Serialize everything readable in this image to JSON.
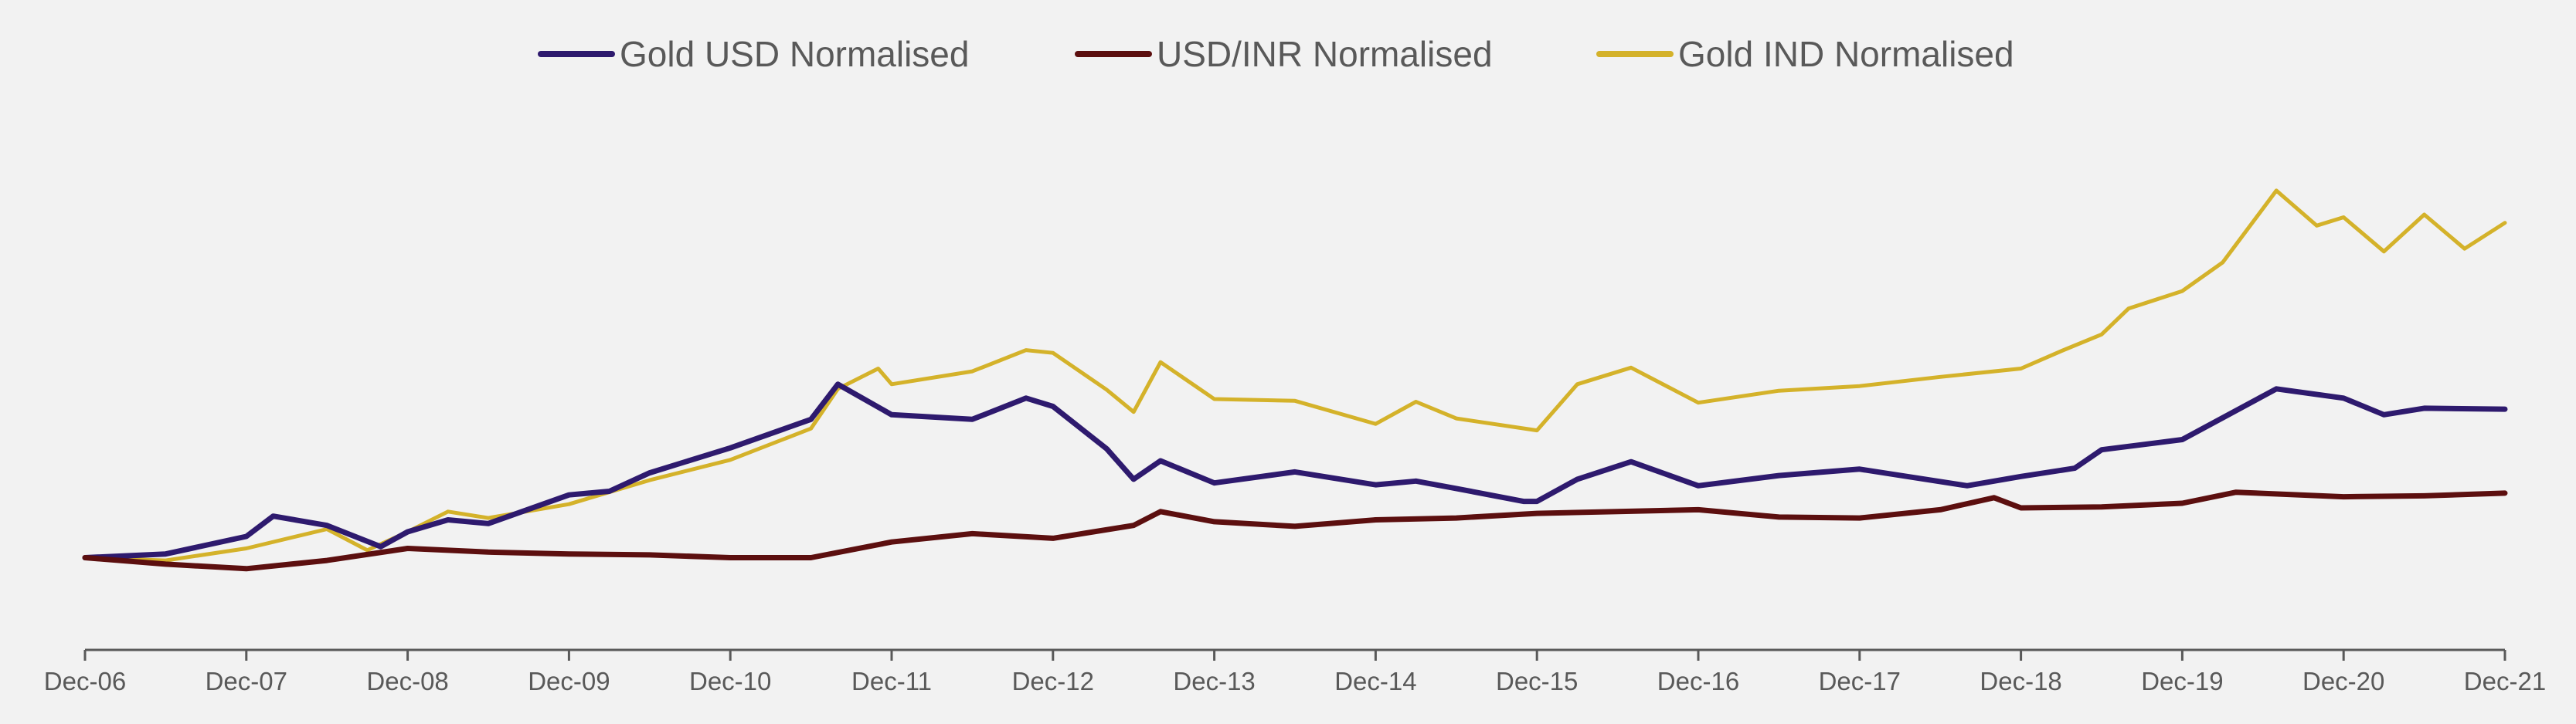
{
  "chart_data": {
    "type": "line",
    "title": "",
    "xlabel": "",
    "ylabel": "",
    "x_start": "Dec-06",
    "x_ticks": [
      "Dec-06",
      "Dec-07",
      "Dec-08",
      "Dec-09",
      "Dec-10",
      "Dec-11",
      "Dec-12",
      "Dec-13",
      "Dec-14",
      "Dec-15",
      "Dec-16",
      "Dec-17",
      "Dec-18",
      "Dec-19",
      "Dec-20",
      "Dec-21"
    ],
    "ylim": [
      0,
      6.2
    ],
    "legend_position": "top-center",
    "grid": false,
    "series": [
      {
        "name": "Gold USD Normalised",
        "color": "#2e1a6e",
        "points": [
          [
            "Dec-06",
            1.0
          ],
          [
            "Jun-07",
            1.04
          ],
          [
            "Dec-07",
            1.23
          ],
          [
            "Feb-08",
            1.45
          ],
          [
            "Jun-08",
            1.35
          ],
          [
            "Oct-08",
            1.12
          ],
          [
            "Dec-08",
            1.28
          ],
          [
            "Mar-09",
            1.41
          ],
          [
            "Jun-09",
            1.37
          ],
          [
            "Dec-09",
            1.68
          ],
          [
            "Mar-10",
            1.72
          ],
          [
            "Jun-10",
            1.92
          ],
          [
            "Dec-10",
            2.19
          ],
          [
            "Jun-11",
            2.5
          ],
          [
            "Aug-11",
            2.88
          ],
          [
            "Dec-11",
            2.55
          ],
          [
            "Jun-12",
            2.5
          ],
          [
            "Oct-12",
            2.73
          ],
          [
            "Dec-12",
            2.64
          ],
          [
            "Apr-13",
            2.18
          ],
          [
            "Jun-13",
            1.85
          ],
          [
            "Aug-13",
            2.05
          ],
          [
            "Dec-13",
            1.81
          ],
          [
            "Jun-14",
            1.93
          ],
          [
            "Dec-14",
            1.79
          ],
          [
            "Mar-15",
            1.83
          ],
          [
            "Jun-15",
            1.75
          ],
          [
            "Nov-15",
            1.61
          ],
          [
            "Dec-15",
            1.61
          ],
          [
            "Mar-16",
            1.85
          ],
          [
            "Jul-16",
            2.04
          ],
          [
            "Dec-16",
            1.78
          ],
          [
            "Jun-17",
            1.89
          ],
          [
            "Dec-17",
            1.96
          ],
          [
            "Aug-18",
            1.78
          ],
          [
            "Dec-18",
            1.88
          ],
          [
            "Apr-19",
            1.97
          ],
          [
            "Jun-19",
            2.17
          ],
          [
            "Dec-19",
            2.28
          ],
          [
            "Jul-20",
            2.83
          ],
          [
            "Dec-20",
            2.73
          ],
          [
            "Mar-21",
            2.55
          ],
          [
            "Jun-21",
            2.62
          ],
          [
            "Dec-21",
            2.61
          ]
        ]
      },
      {
        "name": "USD/INR Normalised",
        "color": "#5c0f0f",
        "points": [
          [
            "Dec-06",
            1.0
          ],
          [
            "Jun-07",
            0.93
          ],
          [
            "Dec-07",
            0.88
          ],
          [
            "Jun-08",
            0.97
          ],
          [
            "Dec-08",
            1.1
          ],
          [
            "Jun-09",
            1.06
          ],
          [
            "Dec-09",
            1.04
          ],
          [
            "Jun-10",
            1.03
          ],
          [
            "Dec-10",
            1.0
          ],
          [
            "Jun-11",
            1.0
          ],
          [
            "Dec-11",
            1.17
          ],
          [
            "Jun-12",
            1.26
          ],
          [
            "Dec-12",
            1.21
          ],
          [
            "Jun-13",
            1.35
          ],
          [
            "Aug-13",
            1.5
          ],
          [
            "Dec-13",
            1.39
          ],
          [
            "Jun-14",
            1.34
          ],
          [
            "Dec-14",
            1.41
          ],
          [
            "Jun-15",
            1.43
          ],
          [
            "Dec-15",
            1.48
          ],
          [
            "Jun-16",
            1.5
          ],
          [
            "Dec-16",
            1.52
          ],
          [
            "Jun-17",
            1.44
          ],
          [
            "Dec-17",
            1.43
          ],
          [
            "Jun-18",
            1.52
          ],
          [
            "Oct-18",
            1.65
          ],
          [
            "Dec-18",
            1.54
          ],
          [
            "Jun-19",
            1.55
          ],
          [
            "Dec-19",
            1.59
          ],
          [
            "Apr-20",
            1.71
          ],
          [
            "Dec-20",
            1.66
          ],
          [
            "Jun-21",
            1.67
          ],
          [
            "Dec-21",
            1.7
          ]
        ]
      },
      {
        "name": "Gold IND Normalised",
        "color": "#d4b22a",
        "points": [
          [
            "Dec-06",
            1.0
          ],
          [
            "Jun-07",
            0.97
          ],
          [
            "Dec-07",
            1.1
          ],
          [
            "Jun-08",
            1.31
          ],
          [
            "Sep-08",
            1.08
          ],
          [
            "Dec-08",
            1.28
          ],
          [
            "Mar-09",
            1.5
          ],
          [
            "Jun-09",
            1.43
          ],
          [
            "Dec-09",
            1.58
          ],
          [
            "Jun-10",
            1.84
          ],
          [
            "Dec-10",
            2.06
          ],
          [
            "Jun-11",
            2.4
          ],
          [
            "Aug-11",
            2.83
          ],
          [
            "Nov-11",
            3.05
          ],
          [
            "Dec-11",
            2.88
          ],
          [
            "Jun-12",
            3.02
          ],
          [
            "Oct-12",
            3.25
          ],
          [
            "Dec-12",
            3.22
          ],
          [
            "Apr-13",
            2.82
          ],
          [
            "Jun-13",
            2.58
          ],
          [
            "Aug-13",
            3.12
          ],
          [
            "Dec-13",
            2.72
          ],
          [
            "Jun-14",
            2.7
          ],
          [
            "Dec-14",
            2.45
          ],
          [
            "Mar-15",
            2.69
          ],
          [
            "Jun-15",
            2.51
          ],
          [
            "Dec-15",
            2.38
          ],
          [
            "Mar-16",
            2.88
          ],
          [
            "Jul-16",
            3.06
          ],
          [
            "Dec-16",
            2.68
          ],
          [
            "Jun-17",
            2.81
          ],
          [
            "Dec-17",
            2.86
          ],
          [
            "Jun-18",
            2.96
          ],
          [
            "Dec-18",
            3.05
          ],
          [
            "Mar-19",
            3.24
          ],
          [
            "Jun-19",
            3.42
          ],
          [
            "Aug-19",
            3.7
          ],
          [
            "Dec-19",
            3.89
          ],
          [
            "Mar-20",
            4.2
          ],
          [
            "Jul-20",
            4.98
          ],
          [
            "Oct-20",
            4.6
          ],
          [
            "Dec-20",
            4.69
          ],
          [
            "Mar-21",
            4.32
          ],
          [
            "Jun-21",
            4.72
          ],
          [
            "Sep-21",
            4.35
          ],
          [
            "Dec-21",
            4.63
          ]
        ]
      }
    ]
  }
}
